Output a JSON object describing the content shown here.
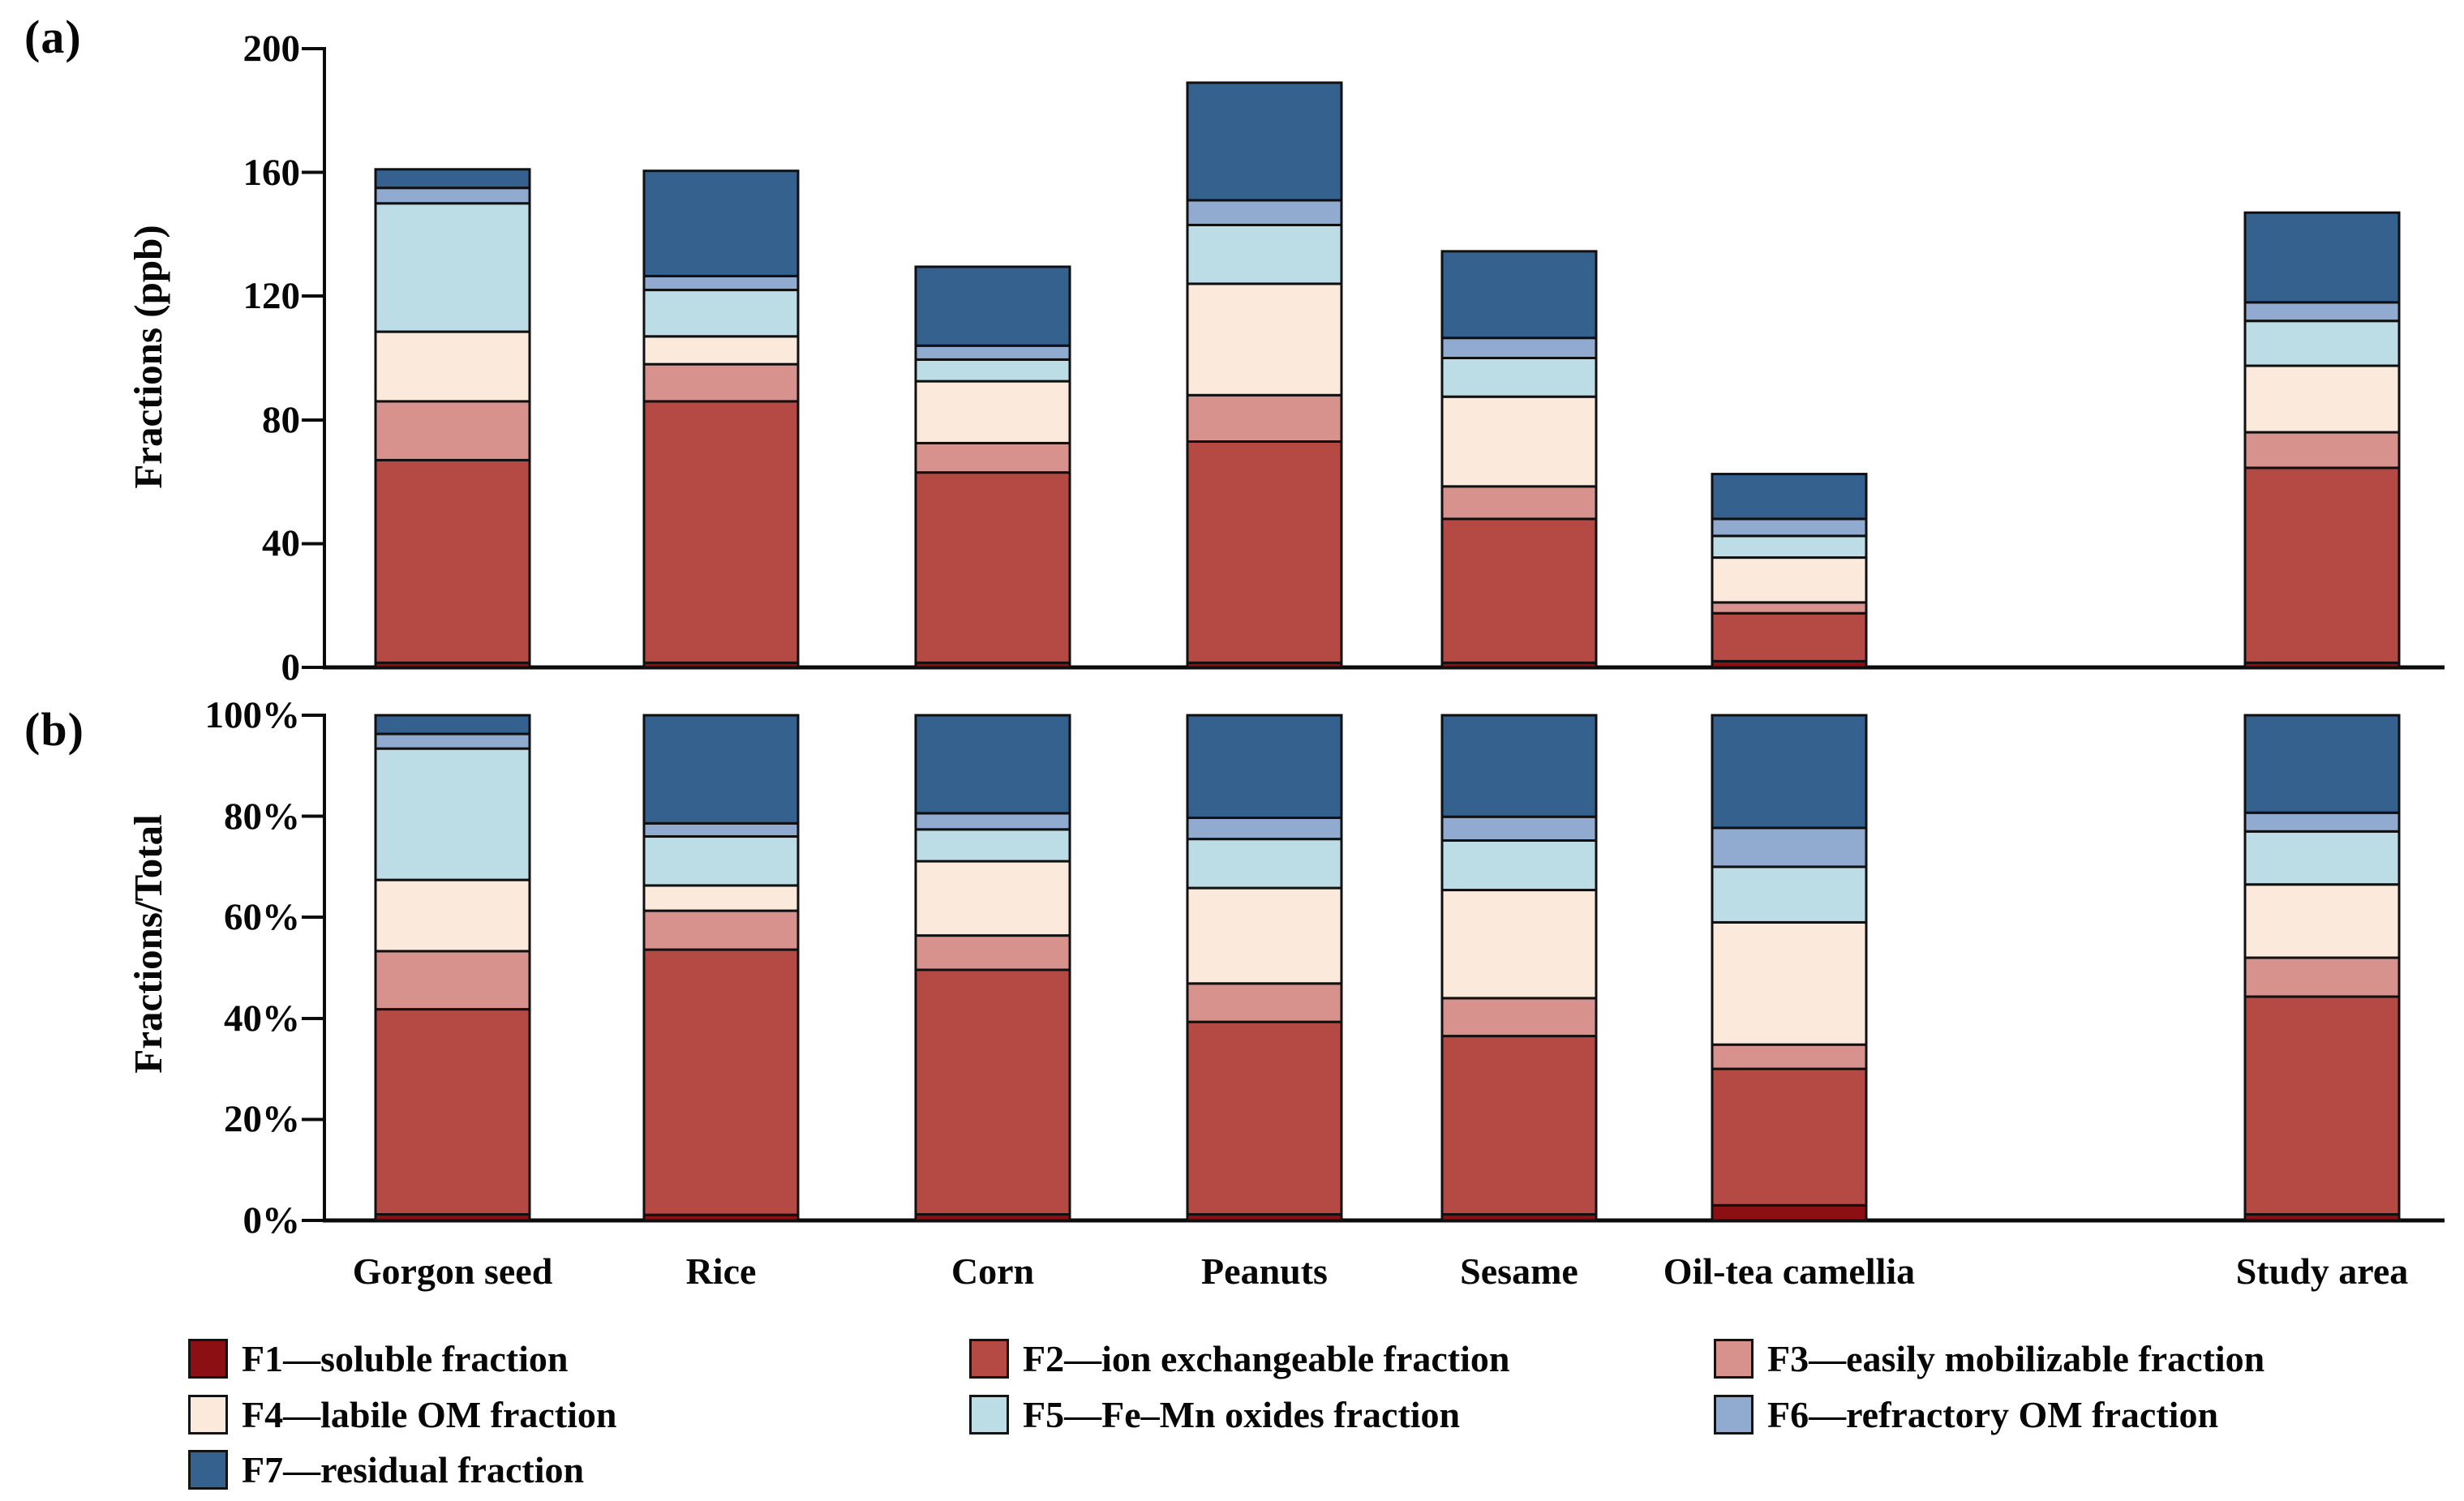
{
  "chart_data": [
    {
      "id": "a",
      "type": "bar",
      "stacked": true,
      "panel_label": "(a)",
      "ylabel": "Fractions (ppb)",
      "unit": "ppb",
      "ylim": [
        0,
        200
      ],
      "yticks": [
        0,
        40,
        80,
        120,
        160,
        200
      ],
      "ytick_labels": [
        "0",
        "40",
        "80",
        "120",
        "160",
        "200"
      ],
      "grid": false,
      "legend_position": "bottom",
      "categories": [
        "Gorgon seed",
        "Rice",
        "Corn",
        "Peanuts",
        "Sesame",
        "Oil-tea camellia",
        "Study area"
      ],
      "series": [
        {
          "name": "F1",
          "color": "#8C1013",
          "values": [
            1.5,
            1.5,
            1.5,
            1.5,
            1.5,
            2.0,
            1.5
          ]
        },
        {
          "name": "F2",
          "color": "#B54944",
          "values": [
            65.5,
            84.5,
            61.5,
            71.5,
            46.5,
            15.5,
            63.0
          ]
        },
        {
          "name": "F3",
          "color": "#D7928E",
          "values": [
            19.0,
            12.0,
            9.5,
            15.0,
            10.5,
            3.5,
            11.5
          ]
        },
        {
          "name": "F4",
          "color": "#FBEADC",
          "values": [
            22.5,
            9.0,
            20.0,
            36.0,
            29.0,
            14.5,
            21.5
          ]
        },
        {
          "name": "F5",
          "color": "#BDDDE6",
          "values": [
            41.5,
            15.0,
            7.0,
            19.0,
            12.5,
            7.0,
            14.5
          ]
        },
        {
          "name": "F6",
          "color": "#90AAD0",
          "values": [
            5.0,
            4.5,
            4.5,
            8.0,
            6.5,
            5.5,
            6.0
          ]
        },
        {
          "name": "F7",
          "color": "#35618F",
          "values": [
            6.0,
            34.0,
            25.5,
            38.0,
            28.0,
            14.5,
            29.0
          ]
        }
      ]
    },
    {
      "id": "b",
      "type": "bar",
      "stacked": true,
      "panel_label": "(b)",
      "ylabel": "Fractions/Total",
      "unit": "%",
      "ylim": [
        0,
        100
      ],
      "yticks": [
        0,
        20,
        40,
        60,
        80,
        100
      ],
      "ytick_labels": [
        "0%",
        "20%",
        "40%",
        "60%",
        "80%",
        "100%"
      ],
      "grid": false,
      "categories": [
        "Gorgon seed",
        "Rice",
        "Corn",
        "Peanuts",
        "Sesame",
        "Oil-tea camellia",
        "Study area"
      ],
      "series": [
        {
          "name": "F1",
          "color": "#8C1013",
          "values": [
            1.2,
            1.1,
            1.2,
            1.2,
            1.2,
            3.0,
            1.2
          ]
        },
        {
          "name": "F2",
          "color": "#B54944",
          "values": [
            40.6,
            52.5,
            48.4,
            38.1,
            35.3,
            27.0,
            43.1
          ]
        },
        {
          "name": "F3",
          "color": "#D7928E",
          "values": [
            11.5,
            7.7,
            6.8,
            7.6,
            7.5,
            4.8,
            7.7
          ]
        },
        {
          "name": "F4",
          "color": "#FBEADC",
          "values": [
            14.1,
            5.0,
            14.7,
            18.9,
            21.4,
            24.2,
            14.5
          ]
        },
        {
          "name": "F5",
          "color": "#BDDDE6",
          "values": [
            26.0,
            9.7,
            6.3,
            9.7,
            9.8,
            11.0,
            10.5
          ]
        },
        {
          "name": "F6",
          "color": "#90AAD0",
          "values": [
            2.9,
            2.6,
            3.2,
            4.2,
            4.7,
            7.7,
            3.7
          ]
        },
        {
          "name": "F7",
          "color": "#35618F",
          "values": [
            3.7,
            21.4,
            19.4,
            20.3,
            20.1,
            22.3,
            19.3
          ]
        }
      ]
    }
  ],
  "legend": {
    "items": [
      {
        "name": "F1",
        "label": "F1—soluble fraction",
        "color": "#8C1013"
      },
      {
        "name": "F2",
        "label": "F2—ion exchangeable fraction",
        "color": "#B54944"
      },
      {
        "name": "F3",
        "label": "F3—easily mobilizable fraction",
        "color": "#D7928E"
      },
      {
        "name": "F4",
        "label": "F4—labile OM fraction",
        "color": "#FBEADC"
      },
      {
        "name": "F5",
        "label": "F5—Fe–Mn oxides fraction",
        "color": "#BDDDE6"
      },
      {
        "name": "F6",
        "label": "F6—refractory OM fraction",
        "color": "#90AAD0"
      },
      {
        "name": "F7",
        "label": "F7—residual fraction",
        "color": "#35618F"
      }
    ]
  }
}
